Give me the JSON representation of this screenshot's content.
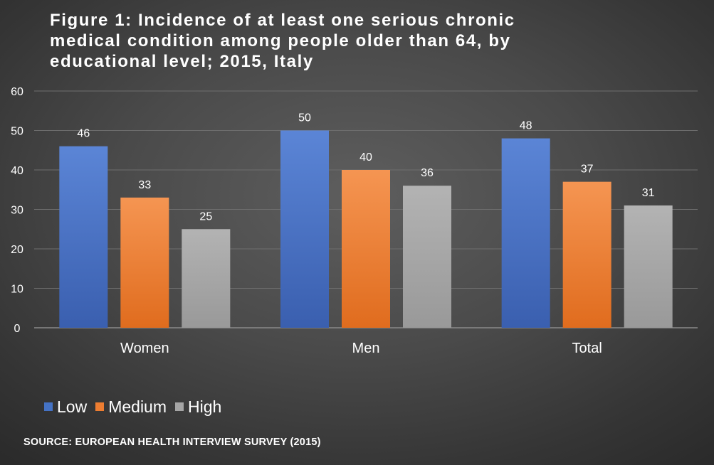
{
  "chart_data": {
    "type": "bar",
    "title": "Figure 1: Incidence of at least one serious chronic\nmedical condition among people older than 64, by\neducational level; 2015, Italy",
    "categories": [
      "Women",
      "Men",
      "Total"
    ],
    "series": [
      {
        "name": "Low",
        "values": [
          46,
          50,
          48
        ],
        "color": "#4472c4",
        "color_light": "#5b85d6",
        "color_dark": "#3a5faf"
      },
      {
        "name": "Medium",
        "values": [
          33,
          40,
          37
        ],
        "color": "#ed7d31",
        "color_light": "#f59552",
        "color_dark": "#e06c1e"
      },
      {
        "name": "High",
        "values": [
          25,
          36,
          31
        ],
        "color": "#a5a5a5",
        "color_light": "#b3b3b3",
        "color_dark": "#999999"
      }
    ],
    "ylim": [
      0,
      60
    ],
    "yticks": [
      0,
      10,
      20,
      30,
      40,
      50,
      60
    ],
    "xlabel": "",
    "ylabel": "",
    "grid": true,
    "data_labels": true,
    "legend_position": "bottom-left"
  },
  "source": "SOURCE: EUROPEAN HEALTH INTERVIEW SURVEY (2015)",
  "colors": {
    "background": "#4a4a4a",
    "text": "#ffffff",
    "gridline": "#6e6e6e",
    "axis_line": "#8a8a8a"
  }
}
